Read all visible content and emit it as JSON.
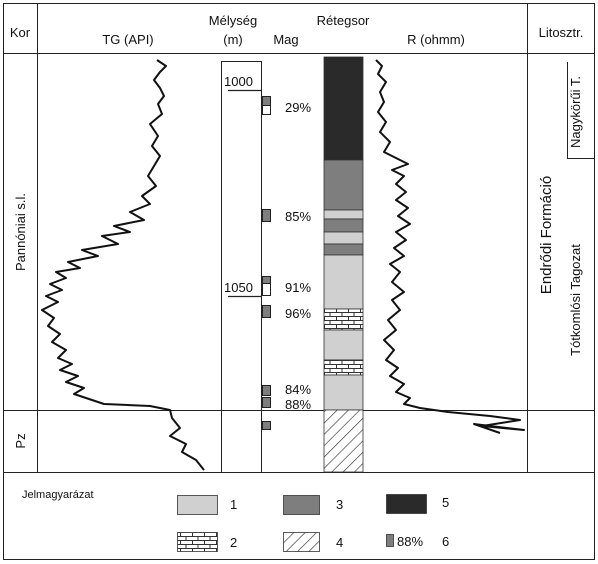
{
  "header": {
    "kor": "Kor",
    "tg": "TG (API)",
    "melyseg_1": "Mélység",
    "melyseg_2": "(m)",
    "mag": "Mag",
    "retegsor": "Rétegsor",
    "r": "R (ohmm)",
    "litosztr": "Litosztr."
  },
  "age": {
    "pannonian": "Pannóniai s.l.",
    "pz": "Pz"
  },
  "depth_ticks": [
    "1000",
    "1050"
  ],
  "core_recovery": [
    "29%",
    "85%",
    "91%",
    "96%",
    "84%",
    "88%"
  ],
  "lithostrat": {
    "formation": "Endrődi Formáció",
    "member_upper": "Nagykörűi T.",
    "member_lower": "Tótkomlósi Tagozat"
  },
  "legend": {
    "title": "Jelmagyarázat",
    "items": [
      {
        "num": "1",
        "color": "#d0d0d0",
        "pattern": "solid-light"
      },
      {
        "num": "2",
        "pattern": "brick"
      },
      {
        "num": "3",
        "color": "#7e7e7e",
        "pattern": "solid-medium"
      },
      {
        "num": "4",
        "pattern": "hatch"
      },
      {
        "num": "5",
        "color": "#2a2a2a",
        "pattern": "solid-dark"
      },
      {
        "num": "6",
        "label": "88%",
        "pattern": "core-marker"
      }
    ]
  },
  "colors": {
    "light": "#d0d0d0",
    "medium": "#7e7e7e",
    "dark": "#2a2a2a",
    "line": "#111111"
  }
}
